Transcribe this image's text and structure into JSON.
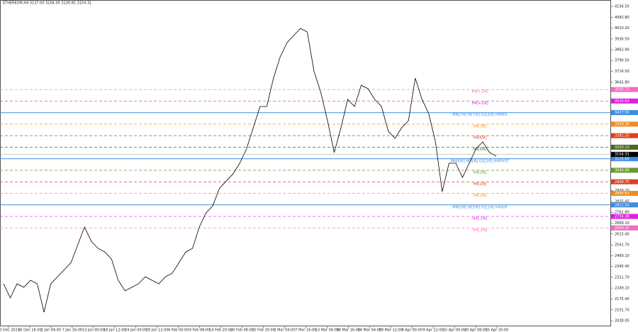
{
  "chart_data": {
    "type": "line",
    "title": "ETHEREUM,H4 3137.00 3164.00 3130.81 3154.31",
    "x_labels": [
      "20 Dec 2023",
      "26 Dec 16:00",
      "2 Jan 04:00",
      "7 Jan 16:00",
      "13 Jan 00:00",
      "18 Jan 12:00",
      "24 Jan 00:00",
      "29 Jan 12:00",
      "4 Feb 00:00",
      "9 Feb 08:00",
      "14 Feb 20:00",
      "20 Feb 08:00",
      "25 Feb 20:00",
      "2 Mar 04:00",
      "7 Mar 16:00",
      "13 Mar 04:00",
      "18 Mar 16:00",
      "24 Mar 04:00",
      "29 Mar 12:00",
      "4 Apr 00:00",
      "9 Apr 12:00",
      "15 Apr 00:00",
      "20 Apr 08:00",
      "25 Apr 20:00"
    ],
    "series": [
      {
        "color": "#000000",
        "values": [
          2278,
          2182,
          2278,
          2254,
          2302,
          2278,
          2086,
          2278,
          2326,
          2374,
          2422,
          2542,
          2662,
          2566,
          2518,
          2494,
          2446,
          2302,
          2230,
          2254,
          2278,
          2326,
          2302,
          2278,
          2326,
          2350,
          2422,
          2494,
          2518,
          2662,
          2758,
          2806,
          2926,
          2974,
          3022,
          3095,
          3191,
          3335,
          3479,
          3479,
          3671,
          3815,
          3911,
          3960,
          4008,
          3984,
          3719,
          3575,
          3383,
          3167,
          3335,
          3527,
          3479,
          3623,
          3599,
          3527,
          3479,
          3311,
          3263,
          3335,
          3383,
          3671,
          3527,
          3431,
          3239,
          2902,
          3095,
          3095,
          2998,
          3095,
          3191,
          3239,
          3167,
          3143
        ]
      }
    ],
    "ylim": [
      1990,
      4200
    ],
    "yticks": [
      {
        "value": 4156.5,
        "label": "4156.50"
      },
      {
        "value": 4082.8,
        "label": "4082.80"
      },
      {
        "value": 4010.2,
        "label": "4010.20"
      },
      {
        "value": 3936.5,
        "label": "3936.50"
      },
      {
        "value": 3862.9,
        "label": "3862.90"
      },
      {
        "value": 3790.5,
        "label": "3790.50"
      },
      {
        "value": 3716.5,
        "label": "3716.50"
      },
      {
        "value": 3642.8,
        "label": "3642.80"
      },
      {
        "value": 2909.1,
        "label": "2909.10"
      },
      2835.45,
      {
        "value": 2762.8,
        "label": "2762.80"
      },
      {
        "value": 2689.1,
        "label": "2689.10"
      },
      {
        "value": 2615.4,
        "label": "2615.40"
      },
      {
        "value": 2541.7,
        "label": "2541.70"
      },
      {
        "value": 2469.1,
        "label": "2469.10"
      },
      {
        "value": 2395.4,
        "label": "2395.40"
      },
      {
        "value": 2321.7,
        "label": "2321.70"
      },
      {
        "value": 2249.1,
        "label": "2249.10"
      },
      {
        "value": 2175.4,
        "label": "2175.40"
      },
      {
        "value": 2101.7,
        "label": "2101.70"
      },
      2028.05
    ],
    "current_price": {
      "value": 3154.31,
      "label": "3154.31",
      "color": "#000000"
    },
    "levels": [
      {
        "name": "H4[+2/8]",
        "value": 3593.75,
        "value_label": "3593.75",
        "color": "#f06cc0",
        "style": "dashed"
      },
      {
        "name": "H4[+1/8]",
        "value": 3515.63,
        "value_label": "3515.63",
        "color": "#e020e0",
        "style": "dashed"
      },
      {
        "name": "MN[7/8] W[7/8] D1[3/8] H4RES",
        "value": 3437.5,
        "value_label": "3437.50",
        "color": "#3c8ce0",
        "style": "solid"
      },
      {
        "name": "H4[7/8]",
        "value": 3359.38,
        "value_label": "3359.38",
        "color": "#f08c20",
        "style": "dashed"
      },
      {
        "name": "H4[6/8]",
        "value": 3281.25,
        "value_label": "3281.25",
        "color": "#e04020",
        "style": "dashed"
      },
      {
        "name": "H4[5/8]",
        "value": 3203.13,
        "value_label": "3203.13",
        "color": "#4a6a20",
        "style": "dashed"
      },
      {
        "name": "MN[6/8] W[6/8] D1[2/8] H4PIVOT",
        "value": 3125,
        "value_label": "3125.00",
        "color": "#3c8ce0",
        "style": "solid"
      },
      {
        "name": "H4[3/8]",
        "value": 3046.88,
        "value_label": "3046.88",
        "color": "#6a9a30",
        "style": "dashed"
      },
      {
        "name": "H4[2/8]",
        "value": 2968.75,
        "value_label": "2968.75",
        "color": "#e04020",
        "style": "dashed"
      },
      {
        "name": "H4[1/8]",
        "value": 2890.63,
        "value_label": "2890.63",
        "color": "#f08c20",
        "style": "dashed"
      },
      {
        "name": "MN[5/8] W[5/8] D1[1/8] H4SUP",
        "value": 2812.5,
        "value_label": "2812.50",
        "color": "#3c8ce0",
        "style": "solid"
      },
      {
        "name": "H4[-1/8]",
        "value": 2734.38,
        "value_label": "2734.38",
        "color": "#e020e0",
        "style": "dashed"
      },
      {
        "name": "H4[-2/8]",
        "value": 2656.25,
        "value_label": "2656.25",
        "color": "#f06cc0",
        "style": "dashed"
      }
    ]
  }
}
